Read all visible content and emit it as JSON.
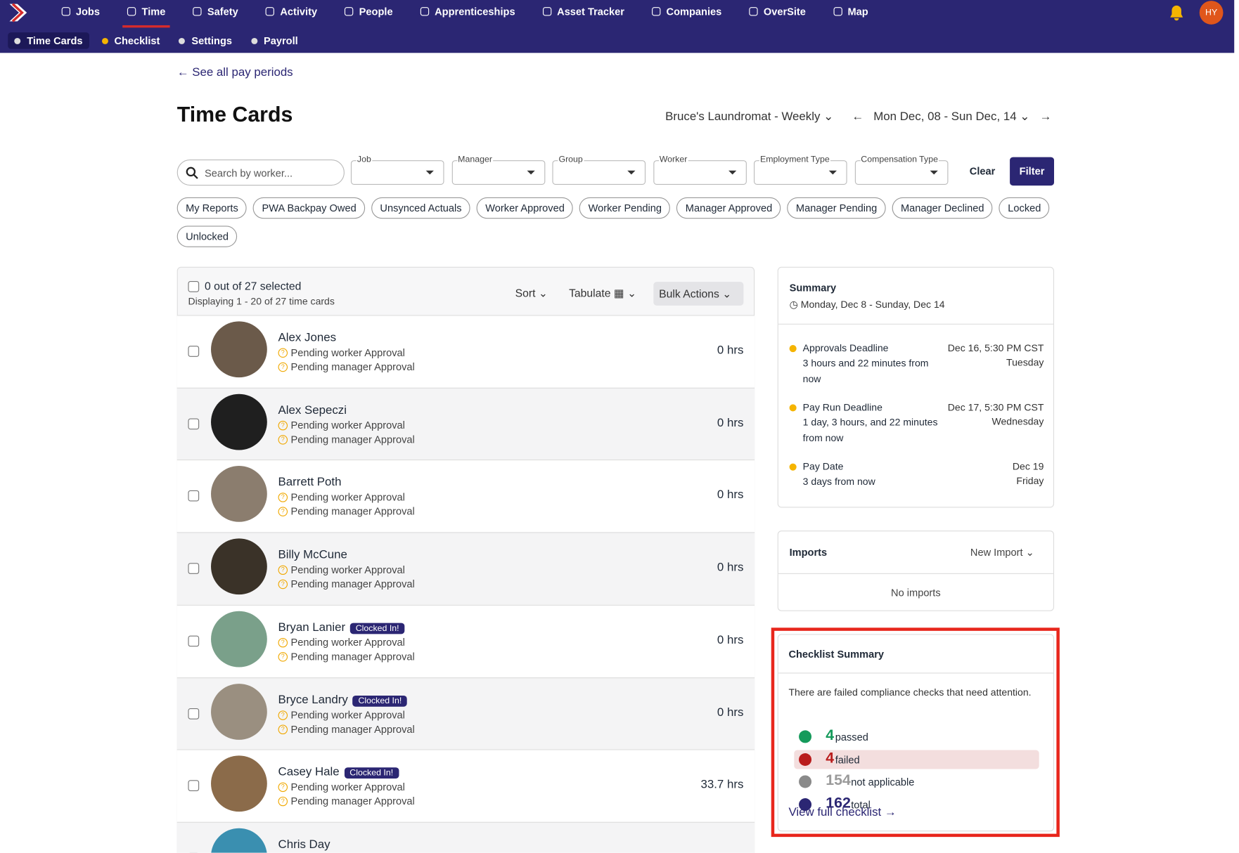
{
  "nav": {
    "logo": "D",
    "items": [
      "Jobs",
      "Time",
      "Safety",
      "Activity",
      "People",
      "Apprenticeships",
      "Asset Tracker",
      "Companies",
      "OverSite",
      "Map"
    ],
    "avatar": "HY"
  },
  "subnav": [
    "Time Cards",
    "Checklist",
    "Settings",
    "Payroll"
  ],
  "header": {
    "back": "See all pay periods",
    "title": "Time Cards",
    "company": "Bruce's Laundromat - Weekly",
    "period": "Mon Dec, 08 - Sun Dec, 14"
  },
  "filters": {
    "search": "Search by worker...",
    "selects": [
      "Job",
      "Manager",
      "Group",
      "Worker",
      "Employment Type",
      "Compensation Type"
    ],
    "clear": "Clear",
    "filter": "Filter"
  },
  "chips": [
    "My Reports",
    "PWA Backpay Owed",
    "Unsynced Actuals",
    "Worker Approved",
    "Worker Pending",
    "Manager Approved",
    "Manager Pending",
    "Manager Declined",
    "Locked",
    "Unlocked"
  ],
  "list": {
    "selected": "0 out of 27 selected",
    "displaying": "Displaying 1 - 20 of 27 time cards",
    "sort": "Sort",
    "tabulate": "Tabulate",
    "bulk": "Bulk Actions",
    "rows": [
      {
        "name": "Alex Jones",
        "badge": null,
        "statuses": [
          "Pending worker Approval",
          "Pending manager Approval"
        ],
        "hours": "0 hrs"
      },
      {
        "name": "Alex Sepeczi",
        "badge": null,
        "statuses": [
          "Pending worker Approval",
          "Pending manager Approval"
        ],
        "hours": "0 hrs"
      },
      {
        "name": "Barrett Poth",
        "badge": null,
        "statuses": [
          "Pending worker Approval",
          "Pending manager Approval"
        ],
        "hours": "0 hrs"
      },
      {
        "name": "Billy McCune",
        "badge": null,
        "statuses": [
          "Pending worker Approval",
          "Pending manager Approval"
        ],
        "hours": "0 hrs"
      },
      {
        "name": "Bryan Lanier",
        "badge": "Clocked In!",
        "statuses": [
          "Pending worker Approval",
          "Pending manager Approval"
        ],
        "hours": "0 hrs"
      },
      {
        "name": "Bryce Landry",
        "badge": "Clocked In!",
        "statuses": [
          "Pending worker Approval",
          "Pending manager Approval"
        ],
        "hours": "0 hrs"
      },
      {
        "name": "Casey Hale",
        "badge": "Clocked In!",
        "statuses": [
          "Pending worker Approval",
          "Pending manager Approval"
        ],
        "hours": "33.7 hrs"
      },
      {
        "name": "Chris Day",
        "badge": null,
        "statuses": [],
        "hours": null
      }
    ]
  },
  "summary": {
    "title": "Summary",
    "range": "Monday, Dec 8 - Sunday, Dec 14",
    "items": [
      {
        "label": "Approvals Deadline",
        "detail": "3 hours and 22 minutes from now",
        "date": "Dec 16, 5:30 PM CST",
        "day": "Tuesday"
      },
      {
        "label": "Pay Run Deadline",
        "detail": "1 day, 3 hours, and 22 minutes from now",
        "date": "Dec 17, 5:30 PM CST",
        "day": "Wednesday"
      },
      {
        "label": "Pay Date",
        "detail": "3 days from now",
        "date": "Dec 19",
        "day": "Friday"
      }
    ]
  },
  "imports": {
    "title": "Imports",
    "action": "New Import",
    "empty": "No imports"
  },
  "checklist": {
    "title": "Checklist Summary",
    "message": "There are failed compliance checks that need attention.",
    "stats": [
      {
        "count": 4,
        "label": "passed"
      },
      {
        "count": 4,
        "label": "failed"
      },
      {
        "count": 154,
        "label": "not applicable"
      },
      {
        "count": 162,
        "label": "total"
      }
    ],
    "link": "View full checklist"
  }
}
